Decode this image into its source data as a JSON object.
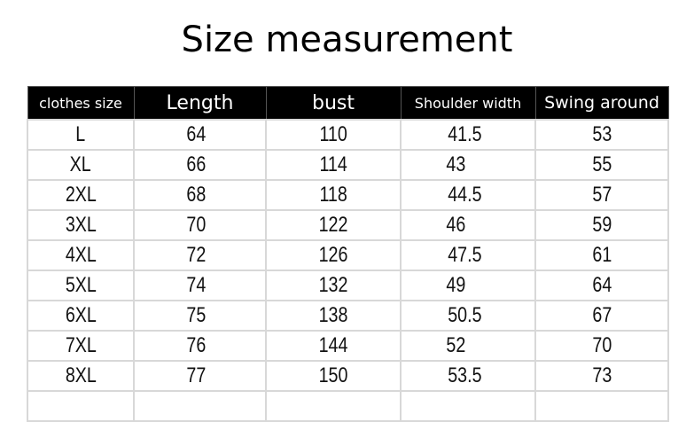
{
  "title": "Size measurement",
  "table": {
    "headers": [
      "clothes size",
      "Length",
      "bust",
      "Shoulder width",
      "Swing around"
    ],
    "rows": [
      [
        "L",
        "64",
        "110",
        "41.5",
        "53"
      ],
      [
        "XL",
        "66",
        "114",
        "43",
        "55"
      ],
      [
        "2XL",
        "68",
        "118",
        "44.5",
        "57"
      ],
      [
        "3XL",
        "70",
        "122",
        "46",
        "59"
      ],
      [
        "4XL",
        "72",
        "126",
        "47.5",
        "61"
      ],
      [
        "5XL",
        "74",
        "132",
        "49",
        "64"
      ],
      [
        "6XL",
        "75",
        "138",
        "50.5",
        "67"
      ],
      [
        "7XL",
        "76",
        "144",
        "52",
        "70"
      ],
      [
        "8XL",
        "77",
        "150",
        "53.5",
        "73"
      ]
    ]
  }
}
